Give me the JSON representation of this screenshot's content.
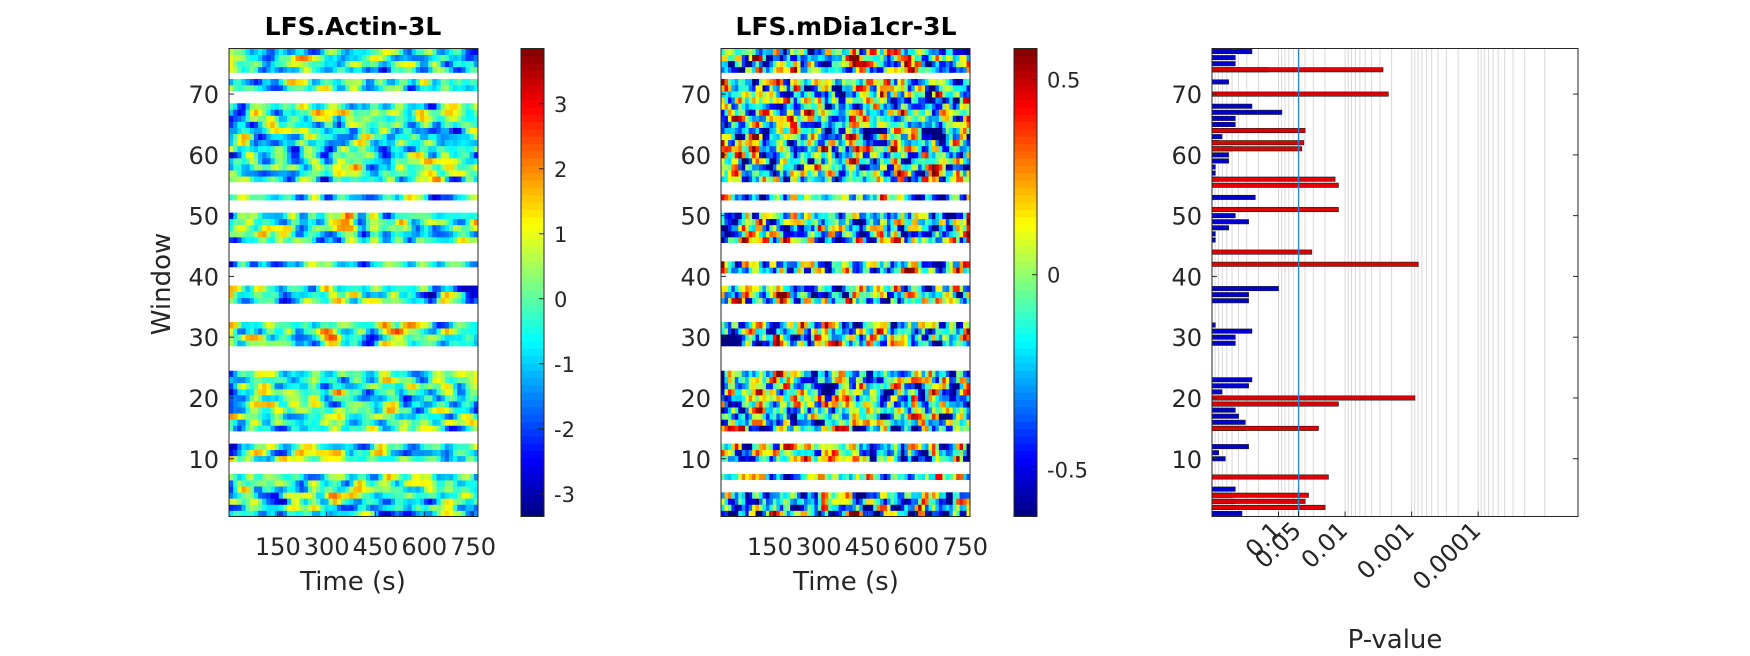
{
  "chart_data": [
    {
      "type": "heatmap",
      "title": "LFS.Actin-3L",
      "xlabel": "Time (s)",
      "ylabel": "Window",
      "xticks": [
        150,
        300,
        450,
        600,
        750
      ],
      "xtick_labels": [
        "150",
        "300",
        "450",
        "600",
        "750"
      ],
      "xlim": [
        0,
        765
      ],
      "yticks": [
        10,
        20,
        30,
        40,
        50,
        60,
        70
      ],
      "ytick_labels": [
        "10",
        "20",
        "30",
        "40",
        "50",
        "60",
        "70"
      ],
      "ylim": [
        0.5,
        77.5
      ],
      "colorbar": {
        "range": [
          -3.35,
          3.85
        ],
        "ticks": [
          -3,
          -2,
          -1,
          0,
          1,
          2,
          3
        ],
        "tick_labels": [
          "-3",
          "-2",
          "-1",
          "0",
          "1",
          "2",
          "3"
        ],
        "colormap": "jet"
      },
      "missing_windows": [
        8,
        9,
        13,
        14,
        25,
        26,
        27,
        28,
        33,
        34,
        35,
        39,
        40,
        41,
        43,
        44,
        45,
        51,
        52,
        54,
        55,
        69,
        70,
        73
      ],
      "grid": false
    },
    {
      "type": "heatmap",
      "title": "LFS.mDia1cr-3L",
      "xlabel": "Time (s)",
      "ylabel": "",
      "xticks": [
        150,
        300,
        450,
        600,
        750
      ],
      "xtick_labels": [
        "150",
        "300",
        "450",
        "600",
        "750"
      ],
      "xlim": [
        0,
        765
      ],
      "yticks": [
        10,
        20,
        30,
        40,
        50,
        60,
        70
      ],
      "ytick_labels": [
        "10",
        "20",
        "30",
        "40",
        "50",
        "60",
        "70"
      ],
      "ylim": [
        0.5,
        77.5
      ],
      "colorbar": {
        "range": [
          -0.62,
          0.58
        ],
        "ticks": [
          -0.5,
          0,
          0.5
        ],
        "tick_labels": [
          "-0.5",
          "0",
          "0.5"
        ],
        "colormap": "jet"
      },
      "missing_windows": [
        5,
        6,
        8,
        9,
        13,
        14,
        25,
        26,
        27,
        28,
        33,
        34,
        35,
        39,
        40,
        43,
        44,
        45,
        51,
        52,
        54,
        55,
        73
      ],
      "grid": false
    },
    {
      "type": "bar",
      "orientation": "horizontal",
      "title": "",
      "xlabel": "P-value",
      "ylabel": "",
      "x_scale": "-log10",
      "xlim_neglog10": [
        0,
        5.5
      ],
      "xticks": [
        0.1,
        0.05,
        0.01,
        0.001,
        0.0001
      ],
      "xtick_labels": [
        "0.1",
        "0.05",
        "0.01",
        "0.001",
        "0.0001"
      ],
      "yticks": [
        10,
        20,
        30,
        40,
        50,
        60,
        70
      ],
      "ytick_labels": [
        "10",
        "20",
        "30",
        "40",
        "50",
        "60",
        "70"
      ],
      "ylim": [
        0.5,
        77.5
      ],
      "reference_line_p": 0.05,
      "grid": true,
      "series": [
        {
          "color": "#0000cc",
          "windows": [
            1,
            2,
            3,
            4,
            5,
            10,
            11,
            12,
            15,
            16,
            17,
            18,
            19,
            20,
            21,
            22,
            23,
            29,
            30,
            31,
            32,
            36,
            37,
            38,
            46,
            47,
            48,
            49,
            50,
            53,
            56,
            57,
            58,
            59,
            60,
            61,
            62,
            63,
            64,
            65,
            66,
            67,
            68,
            72,
            74,
            75,
            76,
            77
          ],
          "neg_log10_p": [
            0.45,
            0.35,
            0.35,
            0.3,
            0.35,
            0.2,
            0.1,
            0.55,
            0.5,
            0.5,
            0.4,
            0.35,
            0.3,
            0.25,
            0.15,
            0.55,
            0.6,
            0.35,
            0.35,
            0.6,
            0.05,
            0.55,
            0.55,
            1.0,
            0.05,
            0.05,
            0.25,
            0.55,
            0.35,
            0.65,
            0.1,
            0.05,
            0.05,
            0.25,
            0.25,
            0.3,
            0.1,
            0.15,
            0.35,
            0.35,
            0.35,
            1.05,
            0.6,
            0.25,
            0.85,
            0.35,
            0.35,
            0.6
          ]
        },
        {
          "color": "#dd0000",
          "windows": [
            2,
            3,
            4,
            7,
            15,
            19,
            20,
            42,
            44,
            51,
            55,
            56,
            61,
            62,
            64,
            70,
            74
          ],
          "neg_log10_p": [
            1.7,
            1.4,
            1.45,
            1.75,
            1.6,
            1.9,
            3.05,
            3.1,
            1.5,
            1.9,
            1.9,
            1.85,
            1.35,
            1.38,
            1.4,
            2.65,
            2.57
          ]
        }
      ]
    }
  ]
}
